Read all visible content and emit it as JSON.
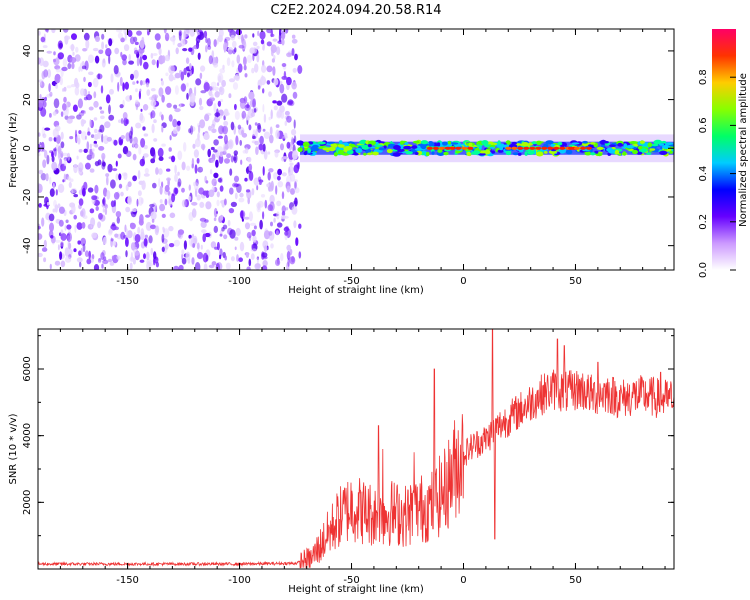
{
  "title": "C2E2.2024.094.20.58.R14",
  "chart_data": [
    {
      "type": "heatmap",
      "xlabel": "Height of straight line (km)",
      "ylabel": "Frequency (Hz)",
      "xlim": [
        -190,
        94
      ],
      "ylim": [
        -50,
        49
      ],
      "xticks": [
        -150,
        -100,
        -50,
        0,
        50
      ],
      "yticks": [
        -40,
        -20,
        0,
        20,
        40
      ],
      "noise_region_x": [
        -190,
        -73
      ],
      "band_center_hz": 0,
      "band_halfwidth_hz": 3,
      "colorbar": {
        "label": "Normalized spectral amplitude",
        "range": [
          0,
          1
        ],
        "ticks": [
          "0.0",
          "0.2",
          "0.4",
          "0.6",
          "0.8"
        ],
        "colors": [
          "#ffffff",
          "#cc99ff",
          "#6600ff",
          "#0000ff",
          "#00ccff",
          "#00ff66",
          "#88ff00",
          "#ffcc00",
          "#ff3300",
          "#ff0066"
        ]
      },
      "hot_segments_x": [
        [
          -15,
          -5
        ],
        [
          -5,
          5
        ],
        [
          20,
          50
        ],
        [
          48,
          58
        ]
      ]
    },
    {
      "type": "line",
      "xlabel": "Height of straight line (km)",
      "ylabel": "SNR (10 * v/v)",
      "xlim": [
        -190,
        94
      ],
      "ylim": [
        0,
        7200
      ],
      "xticks": [
        -150,
        -100,
        -50,
        0,
        50
      ],
      "yticks": [
        2000,
        4000,
        6000
      ],
      "color": "#ee3333",
      "x": [
        -190,
        -150,
        -100,
        -75,
        -68,
        -62,
        -56,
        -50,
        -44,
        -38,
        -32,
        -26,
        -20,
        -14,
        -8,
        -2,
        4,
        10,
        16,
        22,
        28,
        34,
        40,
        46,
        52,
        58,
        64,
        70,
        76,
        82,
        88,
        94
      ],
      "y": [
        150,
        150,
        150,
        170,
        300,
        900,
        1500,
        1900,
        1700,
        1600,
        1700,
        1600,
        1800,
        1900,
        2400,
        3300,
        3700,
        3900,
        4300,
        4600,
        4900,
        5200,
        5400,
        5300,
        5400,
        5200,
        5300,
        5100,
        5200,
        5200,
        5100,
        5100
      ],
      "spikes": [
        {
          "x": -38,
          "y": 4300
        },
        {
          "x": -36,
          "y": 3600
        },
        {
          "x": -22,
          "y": 3500
        },
        {
          "x": -13,
          "y": 6000
        },
        {
          "x": 13,
          "y": 7200
        },
        {
          "x": 14,
          "y": 900
        },
        {
          "x": 42,
          "y": 6900
        },
        {
          "x": 45,
          "y": 6700
        },
        {
          "x": 60,
          "y": 6200
        },
        {
          "x": 88,
          "y": 5900
        }
      ]
    }
  ]
}
